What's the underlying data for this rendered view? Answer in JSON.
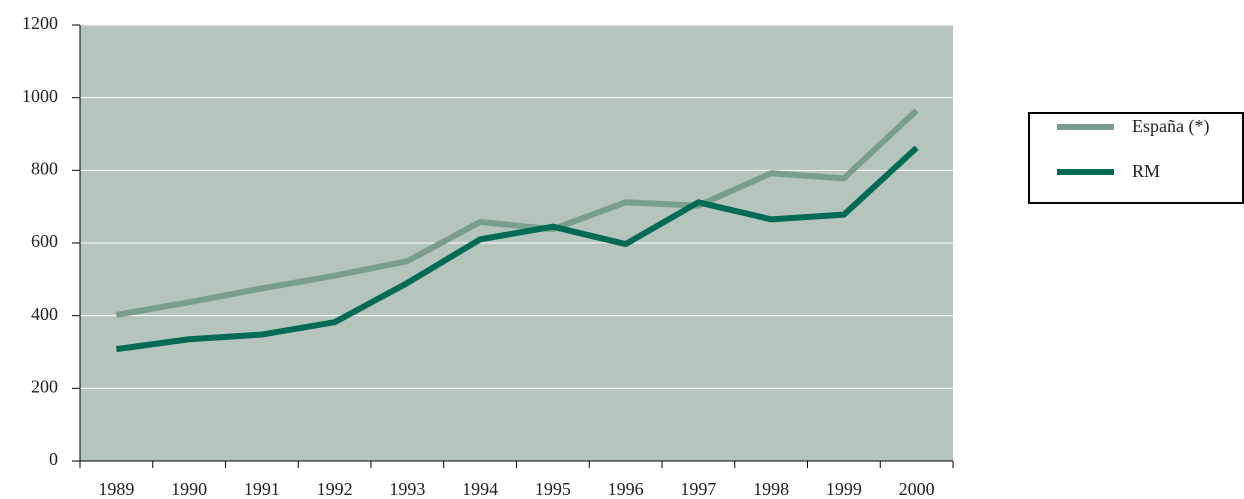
{
  "chart_data": {
    "type": "line",
    "categories": [
      "1989",
      "1990",
      "1991",
      "1992",
      "1993",
      "1994",
      "1995",
      "1996",
      "1997",
      "1998",
      "1999",
      "2000"
    ],
    "series": [
      {
        "name": "España (*)",
        "color": "#7a9e8e",
        "values": [
          402,
          437,
          475,
          510,
          550,
          658,
          638,
          712,
          703,
          792,
          778,
          965
        ]
      },
      {
        "name": "RM",
        "color": "#006b54",
        "values": [
          308,
          335,
          348,
          382,
          490,
          610,
          645,
          597,
          712,
          665,
          678,
          862
        ]
      }
    ],
    "ylim": [
      0,
      1200
    ],
    "yticks": [
      0,
      200,
      400,
      600,
      800,
      1000,
      1200
    ],
    "grid": true
  }
}
